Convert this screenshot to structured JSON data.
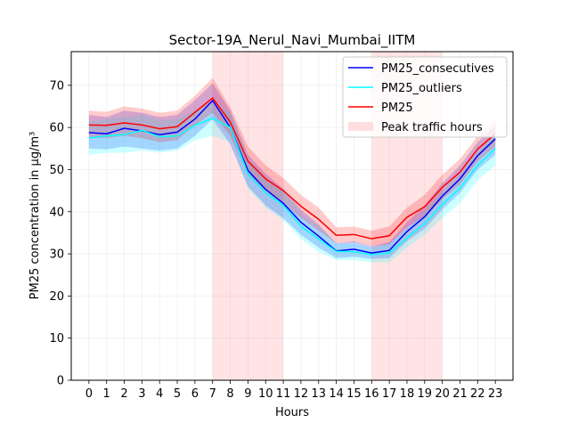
{
  "chart_data": {
    "type": "line",
    "title": "Sector-19A_Nerul_Navi_Mumbai_IITM",
    "xlabel": "Hours",
    "ylabel": "PM25 concentration in µg/m³",
    "x": [
      0,
      1,
      2,
      3,
      4,
      5,
      6,
      7,
      8,
      9,
      10,
      11,
      12,
      13,
      14,
      15,
      16,
      17,
      18,
      19,
      20,
      21,
      22,
      23
    ],
    "xlim": [
      -1.0,
      24.0
    ],
    "ylim": [
      0,
      78
    ],
    "yticks": [
      0,
      10,
      20,
      30,
      40,
      50,
      60,
      70
    ],
    "grid": true,
    "legend_position": "top-right",
    "peak_traffic_hours": [
      [
        7,
        11
      ],
      [
        16,
        20
      ]
    ],
    "peak_color": "#ffc8cc",
    "series": [
      {
        "name": "PM25_consecutives",
        "color": "#0000ff",
        "values": [
          58.8,
          58.5,
          59.8,
          59.2,
          58.3,
          58.9,
          62.0,
          66.4,
          60.0,
          49.8,
          45.3,
          42.0,
          37.5,
          34.2,
          30.7,
          31.1,
          30.2,
          30.8,
          35.3,
          38.8,
          43.7,
          47.8,
          53.3,
          57.3
        ],
        "lower": [
          55.0,
          54.8,
          55.5,
          55.0,
          54.5,
          55.0,
          58.0,
          62.0,
          56.0,
          46.0,
          41.5,
          38.5,
          34.5,
          31.5,
          29.0,
          29.3,
          28.8,
          29.0,
          33.0,
          36.0,
          40.5,
          44.5,
          50.0,
          53.5
        ],
        "upper": [
          63.0,
          62.5,
          64.0,
          63.5,
          62.5,
          63.0,
          66.5,
          70.5,
          64.0,
          53.5,
          49.0,
          45.5,
          40.5,
          37.0,
          32.5,
          33.0,
          31.8,
          32.8,
          37.5,
          41.5,
          46.8,
          51.0,
          56.5,
          60.5
        ]
      },
      {
        "name": "PM25_outliers",
        "color": "#00ffff",
        "values": [
          57.5,
          58.0,
          58.3,
          59.3,
          57.8,
          58.0,
          60.5,
          62.2,
          60.0,
          49.0,
          44.5,
          41.5,
          36.5,
          33.5,
          30.6,
          30.5,
          29.8,
          30.2,
          33.8,
          37.2,
          41.7,
          45.6,
          51.0,
          55.0
        ],
        "lower": [
          53.5,
          54.0,
          54.0,
          54.5,
          54.0,
          54.5,
          57.0,
          58.0,
          56.5,
          45.5,
          41.0,
          38.0,
          33.5,
          30.5,
          28.5,
          28.5,
          28.0,
          28.0,
          31.5,
          34.5,
          38.5,
          42.0,
          47.5,
          51.0
        ],
        "upper": [
          61.5,
          62.0,
          62.5,
          63.0,
          61.8,
          62.0,
          64.0,
          66.0,
          63.5,
          52.5,
          48.0,
          45.0,
          39.5,
          36.5,
          32.5,
          32.5,
          31.5,
          32.5,
          36.0,
          40.0,
          44.8,
          49.0,
          54.5,
          58.5
        ]
      },
      {
        "name": "PM25",
        "color": "#ff0000",
        "values": [
          60.6,
          60.5,
          61.1,
          60.6,
          59.7,
          60.2,
          63.6,
          67.0,
          61.3,
          52.0,
          47.8,
          45.0,
          41.3,
          38.2,
          34.4,
          34.6,
          33.6,
          34.3,
          38.7,
          41.2,
          45.8,
          49.4,
          54.9,
          58.5
        ],
        "lower": [
          57.5,
          57.5,
          58.0,
          57.5,
          56.5,
          57.0,
          60.5,
          63.5,
          58.0,
          49.0,
          45.0,
          42.0,
          38.5,
          35.5,
          32.5,
          32.8,
          31.8,
          32.3,
          36.3,
          38.8,
          43.0,
          46.5,
          52.0,
          55.5
        ],
        "upper": [
          64.0,
          63.7,
          65.0,
          64.5,
          63.5,
          64.0,
          67.5,
          71.8,
          64.8,
          55.5,
          51.0,
          48.0,
          44.0,
          41.0,
          36.3,
          36.5,
          35.5,
          36.5,
          41.0,
          44.0,
          48.8,
          52.5,
          58.0,
          61.5
        ]
      }
    ],
    "legend": [
      {
        "label": "PM25_consecutives",
        "kind": "line",
        "color": "#0000ff"
      },
      {
        "label": "PM25_outliers",
        "kind": "line",
        "color": "#00ffff"
      },
      {
        "label": "PM25",
        "kind": "line",
        "color": "#ff0000"
      },
      {
        "label": "Peak traffic hours",
        "kind": "patch",
        "color": "#ffc8cc"
      }
    ]
  }
}
